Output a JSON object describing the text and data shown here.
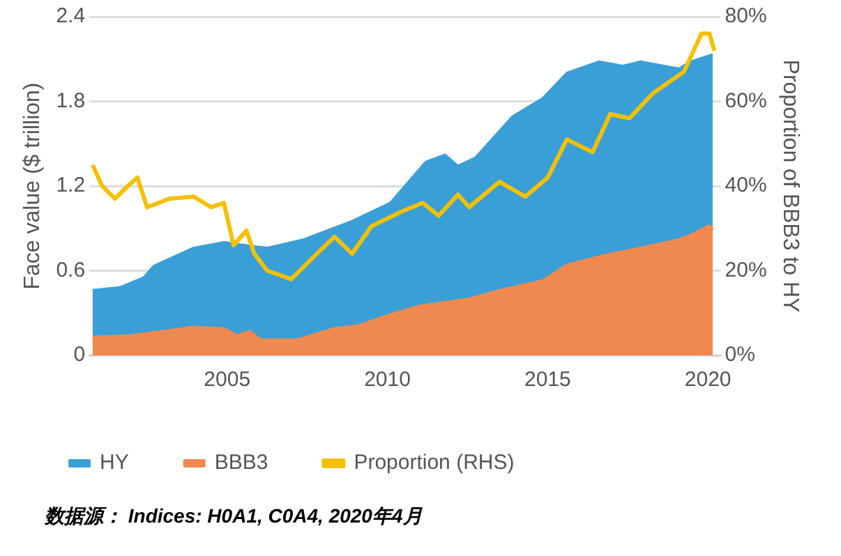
{
  "chart_data": {
    "type": "area",
    "ylabel": "Face value ($ trillion)",
    "y2label": "Proportion of BBB3 to HY",
    "xlim": [
      2000.7,
      2020.4
    ],
    "xticks": [
      2005,
      2010,
      2015,
      2020
    ],
    "ylim": [
      0,
      2.4
    ],
    "yticks": [
      0,
      0.6,
      1.2,
      1.8,
      2.4
    ],
    "y2lim": [
      0,
      80
    ],
    "y2ticks": [
      {
        "value": 0,
        "label": "0%"
      },
      {
        "value": 20,
        "label": "20%"
      },
      {
        "value": 40,
        "label": "40%"
      },
      {
        "value": 60,
        "label": "60%"
      },
      {
        "value": 80,
        "label": "80%"
      }
    ],
    "grid": "y",
    "legend": "bottom",
    "marker": "none",
    "series": [
      {
        "name": "HY",
        "color": "#3a9fd6",
        "x": [
          2000.8,
          2001.65,
          2002.4,
          2002.7,
          2003.95,
          2004.9,
          2005.85,
          2006.25,
          2007.4,
          2008.9,
          2010.1,
          2011.2,
          2011.8,
          2012.2,
          2012.75,
          2013.9,
          2014.85,
          2015.6,
          2016.6,
          2017.35,
          2017.9,
          2019.1,
          2019.45,
          2020.15
        ],
        "values": [
          0.46,
          0.48,
          0.55,
          0.63,
          0.76,
          0.8,
          0.77,
          0.76,
          0.82,
          0.95,
          1.08,
          1.37,
          1.42,
          1.34,
          1.4,
          1.69,
          1.82,
          2.0,
          2.08,
          2.05,
          2.08,
          2.03,
          2.08,
          2.13
        ]
      },
      {
        "name": "BBB3",
        "color": "#f0894f",
        "x": [
          2000.8,
          2002.0,
          2003.95,
          2004.9,
          2005.3,
          2005.7,
          2006.05,
          2007.2,
          2008.35,
          2009.1,
          2010.25,
          2011.0,
          2012.55,
          2013.5,
          2014.85,
          2015.6,
          2016.8,
          2018.1,
          2019.1,
          2019.45,
          2020.05,
          2020.15
        ],
        "values": [
          0.13,
          0.14,
          0.2,
          0.19,
          0.14,
          0.17,
          0.11,
          0.11,
          0.19,
          0.21,
          0.3,
          0.35,
          0.4,
          0.46,
          0.53,
          0.64,
          0.71,
          0.77,
          0.82,
          0.85,
          0.92,
          0.89
        ]
      },
      {
        "name": "Proportion (RHS)",
        "type": "line",
        "axis": "y2",
        "color": "#f5c000",
        "x": [
          2000.8,
          2001.1,
          2001.5,
          2001.9,
          2002.2,
          2002.5,
          2003.2,
          2003.95,
          2004.5,
          2004.9,
          2005.2,
          2005.6,
          2005.85,
          2006.25,
          2007.0,
          2007.8,
          2008.35,
          2008.9,
          2009.5,
          2010.45,
          2011.1,
          2011.6,
          2012.2,
          2012.55,
          2013.5,
          2014.3,
          2015.0,
          2015.6,
          2016.4,
          2016.95,
          2017.55,
          2018.3,
          2019.25,
          2019.8,
          2020.05,
          2020.2
        ],
        "values": [
          45,
          40,
          37,
          40,
          42,
          35,
          37,
          37.5,
          35,
          36,
          26,
          29.5,
          24,
          20,
          18,
          24,
          28,
          24,
          30.5,
          34,
          36,
          33,
          38,
          35,
          41,
          37.5,
          42,
          51,
          48,
          57,
          56,
          62,
          67,
          76,
          76,
          72
        ]
      }
    ],
    "annotations": [
      "数据源： Indices: H0A1, C0A4, 2020年4月"
    ]
  }
}
